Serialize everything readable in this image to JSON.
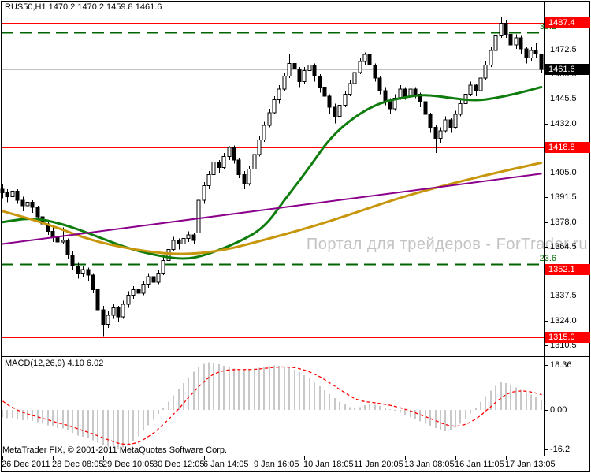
{
  "header": {
    "title": "RUS50,H1 1470.2 1470.2 1459.8 1461.6"
  },
  "watermark": "Портал для трейдеров - ForTrader.ru",
  "indicator": {
    "label": "MACD(12,26,9) 4.10 6.02"
  },
  "footer": {
    "copyright": "MetaTrader FIX, © 2001-2011 MetaQuotes Software Corp."
  },
  "colors": {
    "level_red": "#FF0000",
    "current_gray": "#C0C0C0",
    "fib_green": "#006400",
    "fib_label_green": "#007000",
    "ma_green": "#0E7D0E",
    "ma_gold": "#C8960C",
    "trendline_purple": "#8B008B",
    "hist_gray": "#C8C8C8",
    "signal_red": "#FF0000",
    "badge_red": "#FF0000",
    "badge_black": "#000000",
    "frame_black": "#000000"
  },
  "price_axis": {
    "ticks": [
      {
        "label": "1472.5",
        "price": 1472.5
      },
      {
        "label": "1459.0",
        "price": 1459.0
      },
      {
        "label": "1445.5",
        "price": 1445.5
      },
      {
        "label": "1432.0",
        "price": 1432.0
      },
      {
        "label": "1405.0",
        "price": 1405.0
      },
      {
        "label": "1391.5",
        "price": 1391.5
      },
      {
        "label": "1378.0",
        "price": 1378.0
      },
      {
        "label": "1364.5",
        "price": 1364.5
      },
      {
        "label": "1337.5",
        "price": 1337.5
      },
      {
        "label": "1324.0",
        "price": 1324.0
      },
      {
        "label": "1310.5",
        "price": 1310.5
      }
    ],
    "badges": [
      {
        "label": "1487.4",
        "price": 1487.4,
        "bg": "#FF0000"
      },
      {
        "label": "1418.8",
        "price": 1418.8,
        "bg": "#FF0000"
      },
      {
        "label": "1352.1",
        "price": 1352.1,
        "bg": "#FF0000"
      },
      {
        "label": "1315.0",
        "price": 1315.0,
        "bg": "#FF0000"
      },
      {
        "label": "1461.6",
        "price": 1461.6,
        "bg": "#000000"
      }
    ]
  },
  "macd_axis": {
    "ticks": [
      {
        "label": "18.36",
        "value": 18.36
      },
      {
        "label": "0.00",
        "value": 0
      },
      {
        "label": "-16.2",
        "value": -16.2
      }
    ]
  },
  "time_axis": {
    "labels": [
      {
        "bar": 0,
        "text": "26 Dec 2011"
      },
      {
        "bar": 10,
        "text": "28 Dec 08:05"
      },
      {
        "bar": 20,
        "text": "29 Dec 10:05"
      },
      {
        "bar": 30,
        "text": "30 Dec 12:05"
      },
      {
        "bar": 40,
        "text": "6 Jan 14:05"
      },
      {
        "bar": 50,
        "text": "9 Jan 16:05"
      },
      {
        "bar": 60,
        "text": "10 Jan 18:05"
      },
      {
        "bar": 70,
        "text": "11 Jan 20:05"
      },
      {
        "bar": 80,
        "text": "13 Jan 08:05"
      },
      {
        "bar": 90,
        "text": "16 Jan 11:05"
      },
      {
        "bar": 100,
        "text": "17 Jan 13:05"
      }
    ]
  },
  "chart_data": {
    "type": "candlestick",
    "symbol": "RUS50",
    "timeframe": "H1",
    "last_ohlc": {
      "open": 1470.2,
      "high": 1470.2,
      "low": 1459.8,
      "close": 1461.6
    },
    "ylim": [
      1306,
      1500
    ],
    "ohlc": [
      [
        1396,
        1399,
        1391,
        1394
      ],
      [
        1394,
        1396,
        1389,
        1392
      ],
      [
        1392,
        1397,
        1390,
        1395
      ],
      [
        1395,
        1396,
        1388,
        1390
      ],
      [
        1390,
        1392,
        1384,
        1387
      ],
      [
        1387,
        1391,
        1385,
        1389
      ],
      [
        1389,
        1390,
        1383,
        1386
      ],
      [
        1386,
        1387,
        1379,
        1381
      ],
      [
        1381,
        1383,
        1375,
        1377
      ],
      [
        1377,
        1379,
        1371,
        1373
      ],
      [
        1373,
        1375,
        1367,
        1370
      ],
      [
        1370,
        1372,
        1364,
        1367
      ],
      [
        1367,
        1375,
        1366,
        1368
      ],
      [
        1368,
        1369,
        1358,
        1360
      ],
      [
        1360,
        1362,
        1352,
        1354
      ],
      [
        1354,
        1356,
        1347,
        1350
      ],
      [
        1350,
        1354,
        1348,
        1352
      ],
      [
        1352,
        1353,
        1346,
        1349
      ],
      [
        1349,
        1350,
        1339,
        1341
      ],
      [
        1341,
        1342,
        1328,
        1330
      ],
      [
        1330,
        1332,
        1315.5,
        1322
      ],
      [
        1322,
        1329,
        1320,
        1327
      ],
      [
        1327,
        1333,
        1325,
        1331
      ],
      [
        1331,
        1332,
        1323,
        1326
      ],
      [
        1326,
        1335,
        1325,
        1333
      ],
      [
        1333,
        1340,
        1331,
        1338
      ],
      [
        1338,
        1343,
        1336,
        1341
      ],
      [
        1341,
        1342,
        1336,
        1339
      ],
      [
        1339,
        1346,
        1338,
        1344
      ],
      [
        1344,
        1350,
        1342,
        1348
      ],
      [
        1348,
        1349,
        1342,
        1345
      ],
      [
        1345,
        1352,
        1344,
        1350
      ],
      [
        1350,
        1359,
        1349,
        1357
      ],
      [
        1357,
        1365,
        1356,
        1363
      ],
      [
        1363,
        1370,
        1362,
        1368
      ],
      [
        1368,
        1369,
        1363,
        1366
      ],
      [
        1366,
        1371,
        1364,
        1369
      ],
      [
        1369,
        1373,
        1367,
        1371
      ],
      [
        1371,
        1372,
        1366,
        1368
      ],
      [
        1372,
        1392,
        1371,
        1390
      ],
      [
        1390,
        1400,
        1388,
        1398
      ],
      [
        1398,
        1406,
        1396,
        1404
      ],
      [
        1404,
        1413,
        1403,
        1411
      ],
      [
        1411,
        1412,
        1405,
        1408
      ],
      [
        1408,
        1416,
        1407,
        1414
      ],
      [
        1414,
        1419.5,
        1412,
        1419
      ],
      [
        1419,
        1420,
        1410,
        1412
      ],
      [
        1412,
        1413,
        1402,
        1404
      ],
      [
        1404,
        1406,
        1396,
        1399
      ],
      [
        1399,
        1409,
        1398,
        1407
      ],
      [
        1407,
        1417,
        1406,
        1415
      ],
      [
        1415,
        1425,
        1414,
        1423
      ],
      [
        1423,
        1433,
        1422,
        1431
      ],
      [
        1431,
        1440,
        1430,
        1438
      ],
      [
        1438,
        1447,
        1437,
        1445
      ],
      [
        1445,
        1453,
        1443,
        1451
      ],
      [
        1451,
        1460,
        1450,
        1458
      ],
      [
        1458,
        1470,
        1457,
        1465
      ],
      [
        1465,
        1468,
        1459,
        1462
      ],
      [
        1462,
        1463,
        1452,
        1455
      ],
      [
        1455,
        1463,
        1454,
        1461
      ],
      [
        1461,
        1467,
        1459,
        1464
      ],
      [
        1464,
        1465,
        1455,
        1458
      ],
      [
        1458,
        1459,
        1449,
        1452
      ],
      [
        1452,
        1453,
        1444,
        1447
      ],
      [
        1447,
        1448,
        1437,
        1441
      ],
      [
        1441,
        1443,
        1432,
        1436
      ],
      [
        1436,
        1444,
        1435,
        1442
      ],
      [
        1442,
        1450,
        1441,
        1448
      ],
      [
        1448,
        1456,
        1447,
        1454
      ],
      [
        1454,
        1462,
        1453,
        1460
      ],
      [
        1460,
        1468,
        1459,
        1466
      ],
      [
        1466,
        1471,
        1464,
        1470
      ],
      [
        1470,
        1471,
        1462,
        1464
      ],
      [
        1464,
        1465,
        1455,
        1457
      ],
      [
        1457,
        1458,
        1448,
        1450
      ],
      [
        1450,
        1452,
        1442,
        1444
      ],
      [
        1444,
        1446,
        1437,
        1440
      ],
      [
        1440,
        1448,
        1439,
        1446
      ],
      [
        1446,
        1453,
        1445,
        1451
      ],
      [
        1451,
        1452,
        1445,
        1447
      ],
      [
        1447,
        1453,
        1446,
        1451
      ],
      [
        1451,
        1452,
        1446,
        1448
      ],
      [
        1448,
        1449,
        1441,
        1444
      ],
      [
        1444,
        1445,
        1434,
        1437
      ],
      [
        1437,
        1438,
        1427,
        1430
      ],
      [
        1430,
        1431,
        1416,
        1424
      ],
      [
        1424,
        1430,
        1421,
        1428
      ],
      [
        1428,
        1436,
        1427,
        1434
      ],
      [
        1434,
        1435,
        1427,
        1430
      ],
      [
        1430,
        1439,
        1429,
        1437
      ],
      [
        1437,
        1445,
        1436,
        1443
      ],
      [
        1443,
        1450,
        1442,
        1448
      ],
      [
        1448,
        1455,
        1447,
        1453
      ],
      [
        1453,
        1454,
        1447,
        1450
      ],
      [
        1450,
        1459,
        1449,
        1457
      ],
      [
        1457,
        1466,
        1456,
        1464
      ],
      [
        1464,
        1474,
        1463,
        1472
      ],
      [
        1472,
        1482,
        1471,
        1480
      ],
      [
        1480,
        1490.5,
        1479,
        1487
      ],
      [
        1487,
        1489,
        1479,
        1481
      ],
      [
        1481,
        1483,
        1472,
        1475
      ],
      [
        1475,
        1481,
        1473,
        1479
      ],
      [
        1479,
        1480,
        1470,
        1473
      ],
      [
        1473,
        1474,
        1465,
        1468
      ],
      [
        1468,
        1474,
        1466,
        1472
      ],
      [
        1472,
        1476,
        1468,
        1470.2
      ],
      [
        1470.2,
        1470.2,
        1459.8,
        1461.6
      ]
    ],
    "ma": [
      {
        "name": "ma-green",
        "color": "#0E7D0E",
        "width": 3,
        "points": [
          [
            0,
            1378
          ],
          [
            6,
            1380.5
          ],
          [
            12,
            1377
          ],
          [
            18,
            1371
          ],
          [
            25,
            1363.5
          ],
          [
            31,
            1359.5
          ],
          [
            36,
            1357.5
          ],
          [
            40,
            1359.5
          ],
          [
            47,
            1367
          ],
          [
            52,
            1375
          ],
          [
            56,
            1390
          ],
          [
            61,
            1408
          ],
          [
            65,
            1424
          ],
          [
            70,
            1436
          ],
          [
            75,
            1443.5
          ],
          [
            80,
            1446.5
          ],
          [
            84,
            1448
          ],
          [
            89,
            1446
          ],
          [
            94,
            1444.5
          ],
          [
            98,
            1446
          ],
          [
            103,
            1449
          ],
          [
            107,
            1452
          ]
        ]
      },
      {
        "name": "ma-gold",
        "color": "#C8960C",
        "width": 3,
        "points": [
          [
            0,
            1384
          ],
          [
            9,
            1377
          ],
          [
            18,
            1367.5
          ],
          [
            28,
            1362
          ],
          [
            36,
            1360
          ],
          [
            44,
            1362.5
          ],
          [
            51,
            1367.5
          ],
          [
            61,
            1375
          ],
          [
            70,
            1383
          ],
          [
            79,
            1391.5
          ],
          [
            89,
            1399
          ],
          [
            98,
            1405
          ],
          [
            107,
            1410.5
          ]
        ]
      },
      {
        "name": "trendline-purple",
        "color": "#8B008B",
        "width": 2,
        "points": [
          [
            0,
            1366
          ],
          [
            107,
            1404.5
          ]
        ]
      }
    ],
    "hlines": [
      {
        "price": 1487.4
      },
      {
        "price": 1418.8
      },
      {
        "price": 1352.1
      },
      {
        "price": 1315.0
      }
    ],
    "fib_levels": [
      {
        "label": "38.2",
        "price": 1481.8
      },
      {
        "label": "23.6",
        "price": 1355.2
      }
    ],
    "current_price": 1461.6,
    "macd": {
      "type": "histogram+signal",
      "params": [
        12,
        26,
        9
      ],
      "last": 4.1,
      "signal_last": 6.02,
      "ylim": [
        -18.7,
        21.6
      ],
      "histogram": [
        -3.0,
        -3.4,
        -3.2,
        -3.8,
        -4.2,
        -4.0,
        -4.5,
        -5.0,
        -5.6,
        -6.2,
        -6.8,
        -7.4,
        -7.6,
        -8.4,
        -9.4,
        -10.4,
        -10.9,
        -11.5,
        -12.4,
        -13.4,
        -14.4,
        -15.0,
        -15.6,
        -15.9,
        -15.3,
        -14.2,
        -12.6,
        -10.8,
        -8.6,
        -6.2,
        -4.0,
        -1.6,
        0.8,
        3.4,
        6.0,
        8.6,
        11.0,
        13.4,
        15.6,
        17.4,
        18.8,
        19.5,
        19.2,
        18.6,
        18.0,
        17.4,
        16.9,
        16.6,
        16.4,
        16.6,
        16.9,
        17.3,
        17.7,
        18.0,
        18.2,
        18.0,
        17.6,
        17.2,
        16.4,
        15.4,
        14.2,
        12.8,
        11.2,
        9.6,
        8.0,
        6.4,
        4.8,
        3.4,
        2.2,
        1.2,
        0.6,
        1.2,
        1.9,
        2.3,
        2.1,
        1.6,
        1.0,
        0.4,
        -0.3,
        -1.1,
        -2.0,
        -2.9,
        -3.8,
        -4.7,
        -5.6,
        -6.5,
        -7.4,
        -8.2,
        -8.7,
        -8.3,
        -7.2,
        -5.6,
        -3.6,
        -1.4,
        0.9,
        3.2,
        5.6,
        7.9,
        9.8,
        11.2,
        11.0,
        10.2,
        9.2,
        8.2,
        7.2,
        6.2,
        5.1,
        4.1
      ]
    }
  }
}
